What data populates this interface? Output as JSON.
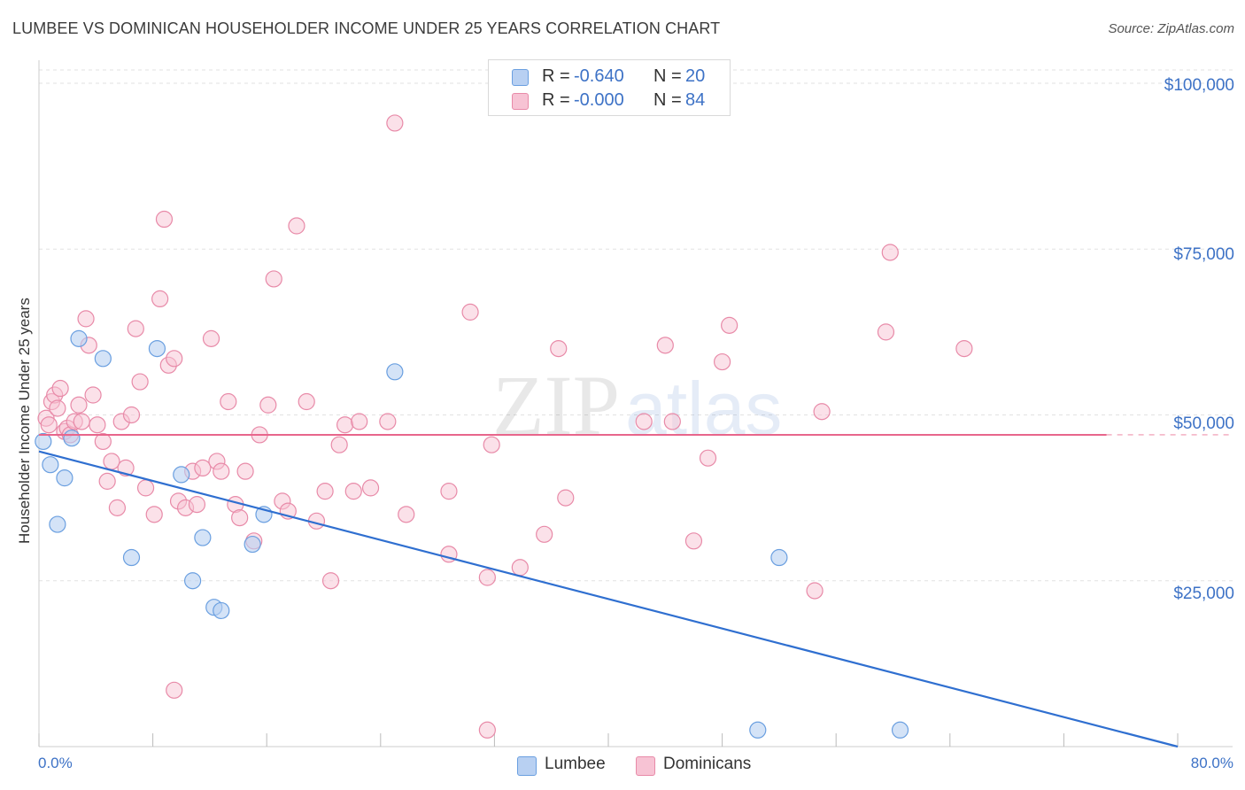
{
  "title": "LUMBEE VS DOMINICAN HOUSEHOLDER INCOME UNDER 25 YEARS CORRELATION CHART",
  "source": "Source: ZipAtlas.com",
  "watermark": {
    "zip": "ZIP",
    "atlas": "atlas"
  },
  "colors": {
    "lumbee": "#6a9fe0",
    "lumbee_fill": "#b8d0f2",
    "dominicans": "#e88aa8",
    "dominicans_fill": "#f7c3d4",
    "lumbee_line": "#2f6fd0",
    "dominicans_line": "#e8668c",
    "tick_text": "#3d72c6"
  },
  "legend": {
    "rows": [
      {
        "r_label": "R =",
        "r_value": "-0.640",
        "n_label": "N =",
        "n_value": "20"
      },
      {
        "r_label": "R =",
        "r_value": "-0.000",
        "n_label": "N =",
        "n_value": "84"
      }
    ]
  },
  "bottom_legend": {
    "lumbee": "Lumbee",
    "dominicans": "Dominicans"
  },
  "axes": {
    "ylabel": "Householder Income Under 25 years",
    "x_min_label": "0.0%",
    "x_max_label": "80.0%",
    "y_ticks": [
      "$100,000",
      "$75,000",
      "$50,000",
      "$25,000"
    ]
  },
  "chart_data": {
    "type": "scatter",
    "title": "LUMBEE VS DOMINICAN HOUSEHOLDER INCOME UNDER 25 YEARS CORRELATION CHART",
    "xlabel": "",
    "ylabel": "Householder Income Under 25 years",
    "xlim": [
      0,
      80
    ],
    "ylim": [
      0,
      102000
    ],
    "y_tick_values": [
      100000,
      75000,
      50000,
      25000
    ],
    "grid": true,
    "legend_position": "top-center",
    "series": [
      {
        "name": "Lumbee",
        "points": [
          [
            0.3,
            46000
          ],
          [
            0.8,
            42500
          ],
          [
            1.3,
            33500
          ],
          [
            1.8,
            40500
          ],
          [
            2.3,
            46500
          ],
          [
            2.8,
            61500
          ],
          [
            4.5,
            58500
          ],
          [
            6.5,
            28500
          ],
          [
            8.3,
            60000
          ],
          [
            10.0,
            41000
          ],
          [
            10.8,
            25000
          ],
          [
            11.5,
            31500
          ],
          [
            12.3,
            21000
          ],
          [
            12.8,
            20500
          ],
          [
            15.0,
            30500
          ],
          [
            15.8,
            35000
          ],
          [
            25.0,
            56500
          ],
          [
            52.0,
            28500
          ],
          [
            50.5,
            2500
          ],
          [
            60.5,
            2500
          ]
        ],
        "trend": {
          "x": [
            0,
            80
          ],
          "y": [
            44500,
            0
          ]
        }
      },
      {
        "name": "Dominicans",
        "points": [
          [
            0.5,
            49500
          ],
          [
            0.7,
            48500
          ],
          [
            0.9,
            52000
          ],
          [
            1.1,
            53000
          ],
          [
            1.3,
            51000
          ],
          [
            1.5,
            54000
          ],
          [
            1.8,
            47500
          ],
          [
            2.0,
            48000
          ],
          [
            2.2,
            47000
          ],
          [
            2.5,
            49000
          ],
          [
            2.8,
            51500
          ],
          [
            3.0,
            49000
          ],
          [
            3.3,
            64500
          ],
          [
            3.5,
            60500
          ],
          [
            3.8,
            53000
          ],
          [
            4.1,
            48500
          ],
          [
            4.5,
            46000
          ],
          [
            4.8,
            40000
          ],
          [
            5.1,
            43000
          ],
          [
            5.5,
            36000
          ],
          [
            5.8,
            49000
          ],
          [
            6.1,
            42000
          ],
          [
            6.5,
            50000
          ],
          [
            6.8,
            63000
          ],
          [
            7.1,
            55000
          ],
          [
            7.5,
            39000
          ],
          [
            8.1,
            35000
          ],
          [
            8.5,
            67500
          ],
          [
            8.8,
            79500
          ],
          [
            9.1,
            57500
          ],
          [
            9.5,
            58500
          ],
          [
            9.8,
            37000
          ],
          [
            10.3,
            36000
          ],
          [
            10.8,
            41500
          ],
          [
            11.1,
            36500
          ],
          [
            11.5,
            42000
          ],
          [
            12.1,
            61500
          ],
          [
            12.5,
            43000
          ],
          [
            12.8,
            41500
          ],
          [
            13.3,
            52000
          ],
          [
            13.8,
            36500
          ],
          [
            14.1,
            34500
          ],
          [
            14.5,
            41500
          ],
          [
            15.1,
            31000
          ],
          [
            15.5,
            47000
          ],
          [
            16.1,
            51500
          ],
          [
            16.5,
            70500
          ],
          [
            17.1,
            37000
          ],
          [
            17.5,
            35500
          ],
          [
            18.1,
            78500
          ],
          [
            18.8,
            52000
          ],
          [
            19.5,
            34000
          ],
          [
            20.1,
            38500
          ],
          [
            20.5,
            25000
          ],
          [
            21.1,
            45500
          ],
          [
            21.5,
            48500
          ],
          [
            22.1,
            38500
          ],
          [
            22.5,
            49000
          ],
          [
            23.3,
            39000
          ],
          [
            24.5,
            49000
          ],
          [
            25.0,
            94000
          ],
          [
            25.8,
            35000
          ],
          [
            28.8,
            38500
          ],
          [
            28.8,
            29000
          ],
          [
            30.3,
            65500
          ],
          [
            31.5,
            25500
          ],
          [
            31.5,
            2500
          ],
          [
            31.8,
            45500
          ],
          [
            33.8,
            27000
          ],
          [
            35.5,
            32000
          ],
          [
            36.5,
            60000
          ],
          [
            37.0,
            37500
          ],
          [
            42.5,
            49000
          ],
          [
            44.0,
            60500
          ],
          [
            44.5,
            49000
          ],
          [
            46.0,
            31000
          ],
          [
            47.0,
            43500
          ],
          [
            48.0,
            58000
          ],
          [
            48.5,
            63500
          ],
          [
            54.5,
            23500
          ],
          [
            55.0,
            50500
          ],
          [
            59.5,
            62500
          ],
          [
            59.8,
            74500
          ],
          [
            65.0,
            60000
          ],
          [
            9.5,
            8500
          ]
        ],
        "trend": {
          "x": [
            0,
            75
          ],
          "y": [
            47000,
            47000
          ],
          "dashed_extension_to": 80
        }
      }
    ]
  }
}
